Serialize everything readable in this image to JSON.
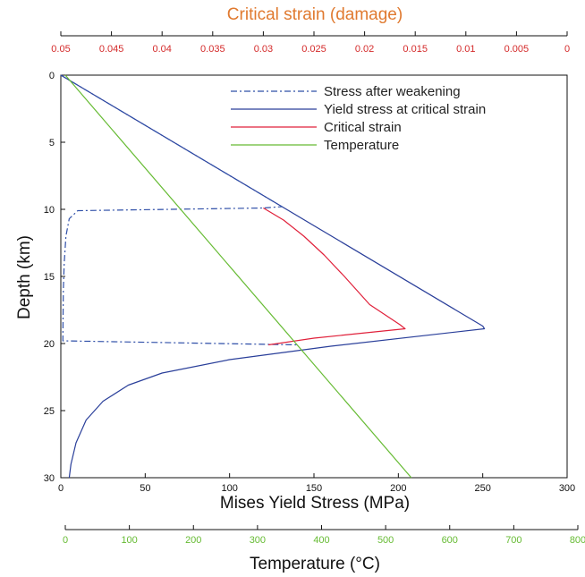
{
  "chart_data": {
    "type": "line",
    "title": "",
    "colors": {
      "stress_after_weakening": "#2f4fa8",
      "yield_stress": "#2a3f9a",
      "critical_strain": "#e0203a",
      "temperature": "#66bb33",
      "top_axis_title": "#e07a30",
      "top_axis_ticks": "#d42a2a",
      "temp_axis": "#66bb33"
    },
    "axes": {
      "x_bottom": {
        "label": "Mises Yield Stress (MPa)",
        "range": [
          0,
          300
        ],
        "ticks": [
          0,
          50,
          100,
          150,
          200,
          250,
          300
        ],
        "tick_labels": [
          "0",
          "50",
          "100",
          "150",
          "200",
          "250",
          "300"
        ]
      },
      "x_top": {
        "label": "Critical strain (damage)",
        "range": [
          0.05,
          0
        ],
        "ticks": [
          0.05,
          0.045,
          0.04,
          0.035,
          0.03,
          0.025,
          0.02,
          0.015,
          0.01,
          0.005,
          0
        ],
        "tick_labels": [
          "0.05",
          "0.045",
          "0.04",
          "0.035",
          "0.03",
          "0.025",
          "0.02",
          "0.015",
          "0.01",
          "0.005",
          "0"
        ]
      },
      "x_temperature": {
        "label": "Temperature (°C)",
        "range": [
          0,
          800
        ],
        "ticks": [
          0,
          100,
          200,
          300,
          400,
          500,
          600,
          700,
          800
        ],
        "tick_labels": [
          "0",
          "100",
          "200",
          "300",
          "400",
          "500",
          "600",
          "700",
          "800"
        ]
      },
      "y": {
        "label": "Depth (km)",
        "range": [
          0,
          30
        ],
        "reversed": true,
        "ticks": [
          0,
          5,
          10,
          15,
          20,
          25,
          30
        ],
        "tick_labels": [
          "0",
          "5",
          "10",
          "15",
          "20",
          "25",
          "30"
        ]
      }
    },
    "legend": {
      "placement": "top-right",
      "entries": [
        {
          "name": "Stress after weakening",
          "style": "dash-dot",
          "series": "stress_after_weakening"
        },
        {
          "name": "Yield stress at critical strain",
          "style": "solid",
          "series": "yield_stress"
        },
        {
          "name": "Critical strain",
          "style": "solid",
          "series": "critical_strain"
        },
        {
          "name": "Temperature",
          "style": "solid",
          "series": "temperature"
        }
      ]
    },
    "series": [
      {
        "key": "yield_stress",
        "x_axis": "x_bottom",
        "points": [
          [
            0,
            0
          ],
          [
            250,
            18.7
          ],
          [
            251,
            18.9
          ],
          [
            160,
            20.2
          ],
          [
            100,
            21.2
          ],
          [
            60,
            22.2
          ],
          [
            40,
            23.1
          ],
          [
            25,
            24.3
          ],
          [
            15,
            25.7
          ],
          [
            9,
            27.4
          ],
          [
            6,
            29.0
          ],
          [
            5,
            30
          ]
        ]
      },
      {
        "key": "stress_after_weakening",
        "x_axis": "x_bottom",
        "points": [
          [
            0,
            0
          ],
          [
            131,
            9.8
          ],
          [
            120,
            9.9
          ],
          [
            10,
            10.1
          ],
          [
            5,
            10.7
          ],
          [
            3,
            12.0
          ],
          [
            2,
            14.0
          ],
          [
            1.5,
            16.0
          ],
          [
            1.3,
            18.0
          ],
          [
            1.2,
            19.8
          ],
          [
            140,
            20.1
          ]
        ]
      },
      {
        "key": "critical_strain",
        "x_axis": "x_top",
        "points": [
          [
            0.03,
            9.9
          ],
          [
            0.028,
            10.8
          ],
          [
            0.026,
            12.0
          ],
          [
            0.024,
            13.4
          ],
          [
            0.022,
            15.0
          ],
          [
            0.0195,
            17.1
          ],
          [
            0.0165,
            18.6
          ],
          [
            0.016,
            18.9
          ],
          [
            0.025,
            19.6
          ],
          [
            0.0295,
            20.1
          ]
        ]
      },
      {
        "key": "temperature",
        "x_axis": "x_temperature",
        "points": [
          [
            0,
            0
          ],
          [
            540,
            30
          ]
        ]
      }
    ]
  }
}
